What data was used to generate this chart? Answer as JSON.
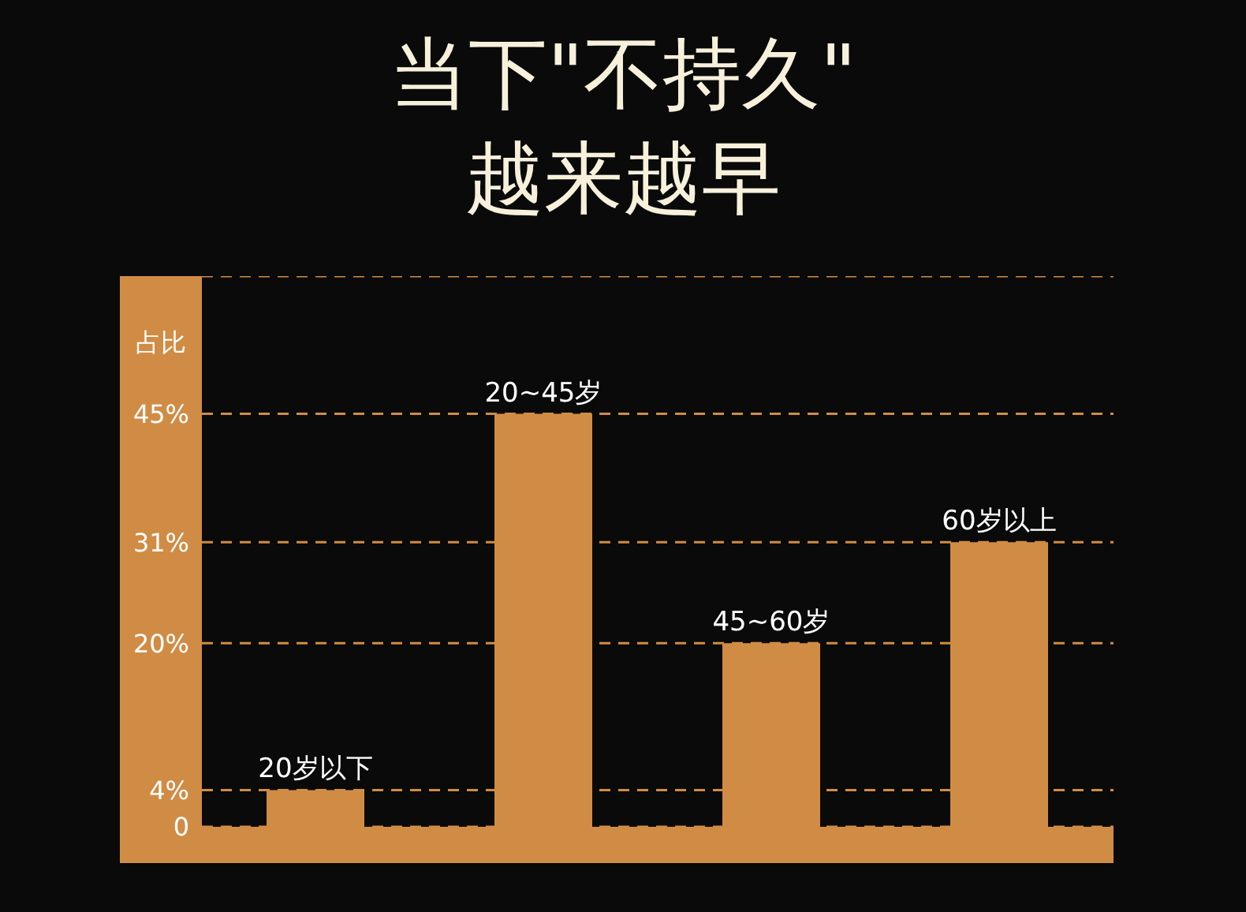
{
  "chart_data": {
    "type": "bar",
    "title": "当下\"不持久\"\n越来越早",
    "ylabel": "占比",
    "categories": [
      "20岁以下",
      "20~45岁",
      "45~60岁",
      "60岁以上"
    ],
    "values": [
      4,
      45,
      20,
      31
    ],
    "color": "#d08c45",
    "ylim": [
      0,
      60
    ],
    "yticks": [
      {
        "value": 0,
        "label": "0"
      },
      {
        "value": 4,
        "label": "4%"
      },
      {
        "value": 20,
        "label": "20%"
      },
      {
        "value": 31,
        "label": "31%"
      },
      {
        "value": 45,
        "label": "45%"
      }
    ],
    "grid": "y",
    "legend": false
  }
}
